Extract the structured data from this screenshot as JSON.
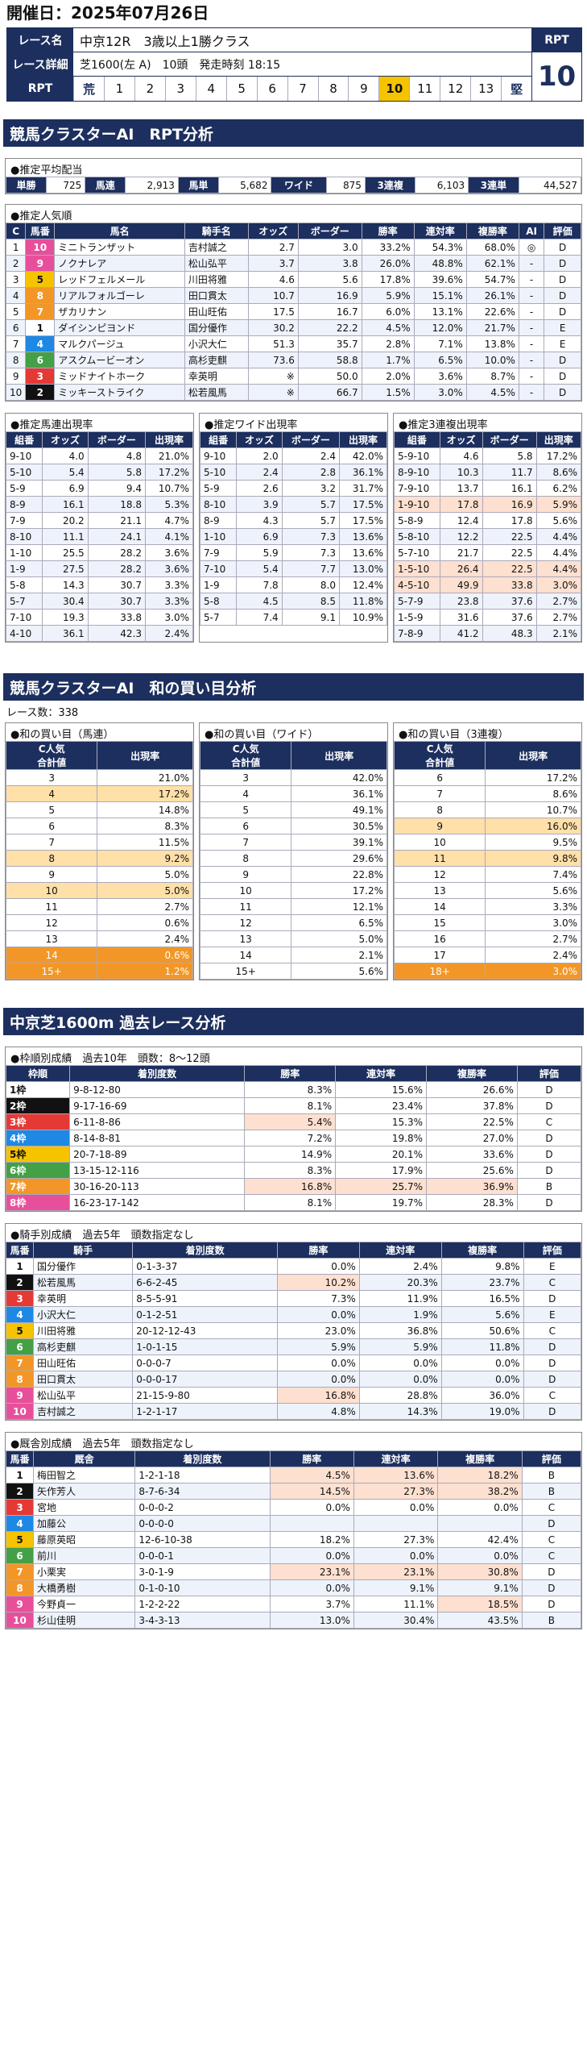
{
  "header": {
    "date_label": "開催日：2025年07月26日"
  },
  "race": {
    "name_label": "レース名",
    "name": "中京12R　3歳以上1勝クラス",
    "detail_label": "レース詳細",
    "detail": "芝1600(左 A)　10頭　発走時刻 18:15",
    "rpt_label": "RPT",
    "rpt_scale": [
      "荒",
      "1",
      "2",
      "3",
      "4",
      "5",
      "6",
      "7",
      "8",
      "9",
      "10",
      "11",
      "12",
      "13",
      "堅"
    ],
    "rpt_value": "10"
  },
  "section1": {
    "title": "競馬クラスターAI　RPT分析"
  },
  "payout": {
    "title": "●推定平均配当",
    "items": [
      [
        "単勝",
        "725"
      ],
      [
        "馬連",
        "2,913"
      ],
      [
        "馬単",
        "5,682"
      ],
      [
        "ワイド",
        "875"
      ],
      [
        "3連複",
        "6,103"
      ],
      [
        "3連単",
        "44,527"
      ]
    ]
  },
  "popularity": {
    "title": "●推定人気順",
    "headers": [
      "C",
      "馬番",
      "馬名",
      "騎手名",
      "オッズ",
      "ボーダー",
      "勝率",
      "連対率",
      "複勝率",
      "AI",
      "評価"
    ],
    "rows": [
      [
        "1",
        "10",
        "ミニトランザット",
        "吉村誠之",
        "2.7",
        "3.0",
        "33.2%",
        "54.3%",
        "68.0%",
        "◎",
        "D"
      ],
      [
        "2",
        "9",
        "ノクナレア",
        "松山弘平",
        "3.7",
        "3.8",
        "26.0%",
        "48.8%",
        "62.1%",
        "-",
        "D"
      ],
      [
        "3",
        "5",
        "レッドフェルメール",
        "川田将雅",
        "4.6",
        "5.6",
        "17.8%",
        "39.6%",
        "54.7%",
        "-",
        "D"
      ],
      [
        "4",
        "8",
        "リアルフォルゴーレ",
        "田口貫太",
        "10.7",
        "16.9",
        "5.9%",
        "15.1%",
        "26.1%",
        "-",
        "D"
      ],
      [
        "5",
        "7",
        "ザカリナン",
        "田山旺佑",
        "17.5",
        "16.7",
        "6.0%",
        "13.1%",
        "22.6%",
        "-",
        "D"
      ],
      [
        "6",
        "1",
        "ダイシンピヨンド",
        "国分優作",
        "30.2",
        "22.2",
        "4.5%",
        "12.0%",
        "21.7%",
        "-",
        "E"
      ],
      [
        "7",
        "4",
        "マルクパージュ",
        "小沢大仁",
        "51.3",
        "35.7",
        "2.8%",
        "7.1%",
        "13.8%",
        "-",
        "E"
      ],
      [
        "8",
        "6",
        "アスクムービーオン",
        "高杉吏麒",
        "73.6",
        "58.8",
        "1.7%",
        "6.5%",
        "10.0%",
        "-",
        "D"
      ],
      [
        "9",
        "3",
        "ミッドナイトホーク",
        "幸英明",
        "※",
        "50.0",
        "2.0%",
        "3.6%",
        "8.7%",
        "-",
        "D"
      ],
      [
        "10",
        "2",
        "ミッキーストライク",
        "松若風馬",
        "※",
        "66.7",
        "1.5%",
        "3.0%",
        "4.5%",
        "-",
        "D"
      ]
    ]
  },
  "umaren": {
    "title": "●推定馬連出現率",
    "headers": [
      "組番",
      "オッズ",
      "ボーダー",
      "出現率"
    ],
    "rows": [
      [
        "9-10",
        "4.0",
        "4.8",
        "21.0%"
      ],
      [
        "5-10",
        "5.4",
        "5.8",
        "17.2%"
      ],
      [
        "5-9",
        "6.9",
        "9.4",
        "10.7%"
      ],
      [
        "8-9",
        "16.1",
        "18.8",
        "5.3%"
      ],
      [
        "7-9",
        "20.2",
        "21.1",
        "4.7%"
      ],
      [
        "8-10",
        "11.1",
        "24.1",
        "4.1%"
      ],
      [
        "1-10",
        "25.5",
        "28.2",
        "3.6%"
      ],
      [
        "1-9",
        "27.5",
        "28.2",
        "3.6%"
      ],
      [
        "5-8",
        "14.3",
        "30.7",
        "3.3%"
      ],
      [
        "5-7",
        "30.4",
        "30.7",
        "3.3%"
      ],
      [
        "7-10",
        "19.3",
        "33.8",
        "3.0%"
      ],
      [
        "4-10",
        "36.1",
        "42.3",
        "2.4%"
      ]
    ]
  },
  "wide": {
    "title": "●推定ワイド出現率",
    "headers": [
      "組番",
      "オッズ",
      "ボーダー",
      "出現率"
    ],
    "rows": [
      [
        "9-10",
        "2.0",
        "2.4",
        "42.0%"
      ],
      [
        "5-10",
        "2.4",
        "2.8",
        "36.1%"
      ],
      [
        "5-9",
        "2.6",
        "3.2",
        "31.7%"
      ],
      [
        "8-10",
        "3.9",
        "5.7",
        "17.5%"
      ],
      [
        "8-9",
        "4.3",
        "5.7",
        "17.5%"
      ],
      [
        "1-10",
        "6.9",
        "7.3",
        "13.6%"
      ],
      [
        "7-9",
        "5.9",
        "7.3",
        "13.6%"
      ],
      [
        "7-10",
        "5.4",
        "7.7",
        "13.0%"
      ],
      [
        "1-9",
        "7.8",
        "8.0",
        "12.4%"
      ],
      [
        "5-8",
        "4.5",
        "8.5",
        "11.8%"
      ],
      [
        "5-7",
        "7.4",
        "9.1",
        "10.9%"
      ]
    ]
  },
  "trio": {
    "title": "●推定3連複出現率",
    "headers": [
      "組番",
      "オッズ",
      "ボーダー",
      "出現率"
    ],
    "rows": [
      [
        "5-9-10",
        "4.6",
        "5.8",
        "17.2%"
      ],
      [
        "8-9-10",
        "10.3",
        "11.7",
        "8.6%"
      ],
      [
        "7-9-10",
        "13.7",
        "16.1",
        "6.2%"
      ],
      [
        "1-9-10",
        "17.8",
        "16.9",
        "5.9%"
      ],
      [
        "5-8-9",
        "12.4",
        "17.8",
        "5.6%"
      ],
      [
        "5-8-10",
        "12.2",
        "22.5",
        "4.4%"
      ],
      [
        "5-7-10",
        "21.7",
        "22.5",
        "4.4%"
      ],
      [
        "1-5-10",
        "26.4",
        "22.5",
        "4.4%"
      ],
      [
        "4-5-10",
        "49.9",
        "33.8",
        "3.0%"
      ],
      [
        "5-7-9",
        "23.8",
        "37.6",
        "2.7%"
      ],
      [
        "1-5-9",
        "31.6",
        "37.6",
        "2.7%"
      ],
      [
        "7-8-9",
        "41.2",
        "48.3",
        "2.1%"
      ]
    ]
  },
  "section2": {
    "title": "競馬クラスターAI　和の買い目分析",
    "count": "レース数：338"
  },
  "sum_umaren": {
    "title": "●和の買い目（馬連）",
    "headers": [
      "C人気\n合計値",
      "出現率"
    ],
    "rows": [
      [
        "3",
        "21.0%"
      ],
      [
        "4",
        "17.2%"
      ],
      [
        "5",
        "14.8%"
      ],
      [
        "6",
        "8.3%"
      ],
      [
        "7",
        "11.5%"
      ],
      [
        "8",
        "9.2%"
      ],
      [
        "9",
        "5.0%"
      ],
      [
        "10",
        "5.0%"
      ],
      [
        "11",
        "2.7%"
      ],
      [
        "12",
        "0.6%"
      ],
      [
        "13",
        "2.4%"
      ],
      [
        "14",
        "0.6%"
      ],
      [
        "15+",
        "1.2%"
      ]
    ]
  },
  "sum_wide": {
    "title": "●和の買い目（ワイド）",
    "headers": [
      "C人気\n合計値",
      "出現率"
    ],
    "rows": [
      [
        "3",
        "42.0%"
      ],
      [
        "4",
        "36.1%"
      ],
      [
        "5",
        "49.1%"
      ],
      [
        "6",
        "30.5%"
      ],
      [
        "7",
        "39.1%"
      ],
      [
        "8",
        "29.6%"
      ],
      [
        "9",
        "22.8%"
      ],
      [
        "10",
        "17.2%"
      ],
      [
        "11",
        "12.1%"
      ],
      [
        "12",
        "6.5%"
      ],
      [
        "13",
        "5.0%"
      ],
      [
        "14",
        "2.1%"
      ],
      [
        "15+",
        "5.6%"
      ]
    ]
  },
  "sum_trio": {
    "title": "●和の買い目（3連複）",
    "headers": [
      "C人気\n合計値",
      "出現率"
    ],
    "rows": [
      [
        "6",
        "17.2%"
      ],
      [
        "7",
        "8.6%"
      ],
      [
        "8",
        "10.7%"
      ],
      [
        "9",
        "16.0%"
      ],
      [
        "10",
        "9.5%"
      ],
      [
        "11",
        "9.8%"
      ],
      [
        "12",
        "7.4%"
      ],
      [
        "13",
        "5.6%"
      ],
      [
        "14",
        "3.3%"
      ],
      [
        "15",
        "3.0%"
      ],
      [
        "16",
        "2.7%"
      ],
      [
        "17",
        "2.4%"
      ],
      [
        "18+",
        "3.0%"
      ]
    ]
  },
  "section3": {
    "title": "中京芝1600m 過去レース分析"
  },
  "waku": {
    "title": "●枠順別成績　過去10年　頭数：8～12頭",
    "headers": [
      "枠順",
      "着別度数",
      "勝率",
      "連対率",
      "複勝率",
      "評価"
    ],
    "rows": [
      [
        "1枠",
        "9-8-12-80",
        "8.3%",
        "15.6%",
        "26.6%",
        "D"
      ],
      [
        "2枠",
        "9-17-16-69",
        "8.1%",
        "23.4%",
        "37.8%",
        "D"
      ],
      [
        "3枠",
        "6-11-8-86",
        "5.4%",
        "15.3%",
        "22.5%",
        "C"
      ],
      [
        "4枠",
        "8-14-8-81",
        "7.2%",
        "19.8%",
        "27.0%",
        "D"
      ],
      [
        "5枠",
        "20-7-18-89",
        "14.9%",
        "20.1%",
        "33.6%",
        "D"
      ],
      [
        "6枠",
        "13-15-12-116",
        "8.3%",
        "17.9%",
        "25.6%",
        "D"
      ],
      [
        "7枠",
        "30-16-20-113",
        "16.8%",
        "25.7%",
        "36.9%",
        "B"
      ],
      [
        "8枠",
        "16-23-17-142",
        "8.1%",
        "19.7%",
        "28.3%",
        "D"
      ]
    ]
  },
  "jockey": {
    "title": "●騎手別成績　過去5年　頭数指定なし",
    "headers": [
      "馬番",
      "騎手",
      "着別度数",
      "勝率",
      "連対率",
      "複勝率",
      "評価"
    ],
    "rows": [
      [
        "1",
        "国分優作",
        "0-1-3-37",
        "0.0%",
        "2.4%",
        "9.8%",
        "E"
      ],
      [
        "2",
        "松若風馬",
        "6-6-2-45",
        "10.2%",
        "20.3%",
        "23.7%",
        "C"
      ],
      [
        "3",
        "幸英明",
        "8-5-5-91",
        "7.3%",
        "11.9%",
        "16.5%",
        "D"
      ],
      [
        "4",
        "小沢大仁",
        "0-1-2-51",
        "0.0%",
        "1.9%",
        "5.6%",
        "E"
      ],
      [
        "5",
        "川田将雅",
        "20-12-12-43",
        "23.0%",
        "36.8%",
        "50.6%",
        "C"
      ],
      [
        "6",
        "高杉吏麒",
        "1-0-1-15",
        "5.9%",
        "5.9%",
        "11.8%",
        "D"
      ],
      [
        "7",
        "田山旺佑",
        "0-0-0-7",
        "0.0%",
        "0.0%",
        "0.0%",
        "D"
      ],
      [
        "8",
        "田口貫太",
        "0-0-0-17",
        "0.0%",
        "0.0%",
        "0.0%",
        "D"
      ],
      [
        "9",
        "松山弘平",
        "21-15-9-80",
        "16.8%",
        "28.8%",
        "36.0%",
        "C"
      ],
      [
        "10",
        "吉村誠之",
        "1-2-1-17",
        "4.8%",
        "14.3%",
        "19.0%",
        "D"
      ]
    ]
  },
  "stable": {
    "title": "●厩舎別成績　過去5年　頭数指定なし",
    "headers": [
      "馬番",
      "厩舎",
      "着別度数",
      "勝率",
      "連対率",
      "複勝率",
      "評価"
    ],
    "rows": [
      [
        "1",
        "梅田智之",
        "1-2-1-18",
        "4.5%",
        "13.6%",
        "18.2%",
        "B"
      ],
      [
        "2",
        "矢作芳人",
        "8-7-6-34",
        "14.5%",
        "27.3%",
        "38.2%",
        "B"
      ],
      [
        "3",
        "宮地",
        "0-0-0-2",
        "0.0%",
        "0.0%",
        "0.0%",
        "C"
      ],
      [
        "4",
        "加藤公",
        "0-0-0-0",
        "",
        "",
        "",
        "D"
      ],
      [
        "5",
        "藤原英昭",
        "12-6-10-38",
        "18.2%",
        "27.3%",
        "42.4%",
        "C"
      ],
      [
        "6",
        "前川",
        "0-0-0-1",
        "0.0%",
        "0.0%",
        "0.0%",
        "C"
      ],
      [
        "7",
        "小栗実",
        "3-0-1-9",
        "23.1%",
        "23.1%",
        "30.8%",
        "D"
      ],
      [
        "8",
        "大橋勇樹",
        "0-1-0-10",
        "0.0%",
        "9.1%",
        "9.1%",
        "D"
      ],
      [
        "9",
        "今野貞一",
        "1-2-2-22",
        "3.7%",
        "11.1%",
        "18.5%",
        "D"
      ],
      [
        "10",
        "杉山佳明",
        "3-4-3-13",
        "13.0%",
        "30.4%",
        "43.5%",
        "B"
      ]
    ]
  },
  "colors": {
    "navy": "#1c2f5e",
    "pink": "#fde0d0",
    "orange": "#f29727"
  },
  "waku_colors": {
    "1": "#ffffff",
    "2": "#111111",
    "3": "#e53935",
    "4": "#1e88e5",
    "5": "#f5c300",
    "6": "#43a047",
    "7": "#f29727",
    "8": "#e84f9a"
  }
}
